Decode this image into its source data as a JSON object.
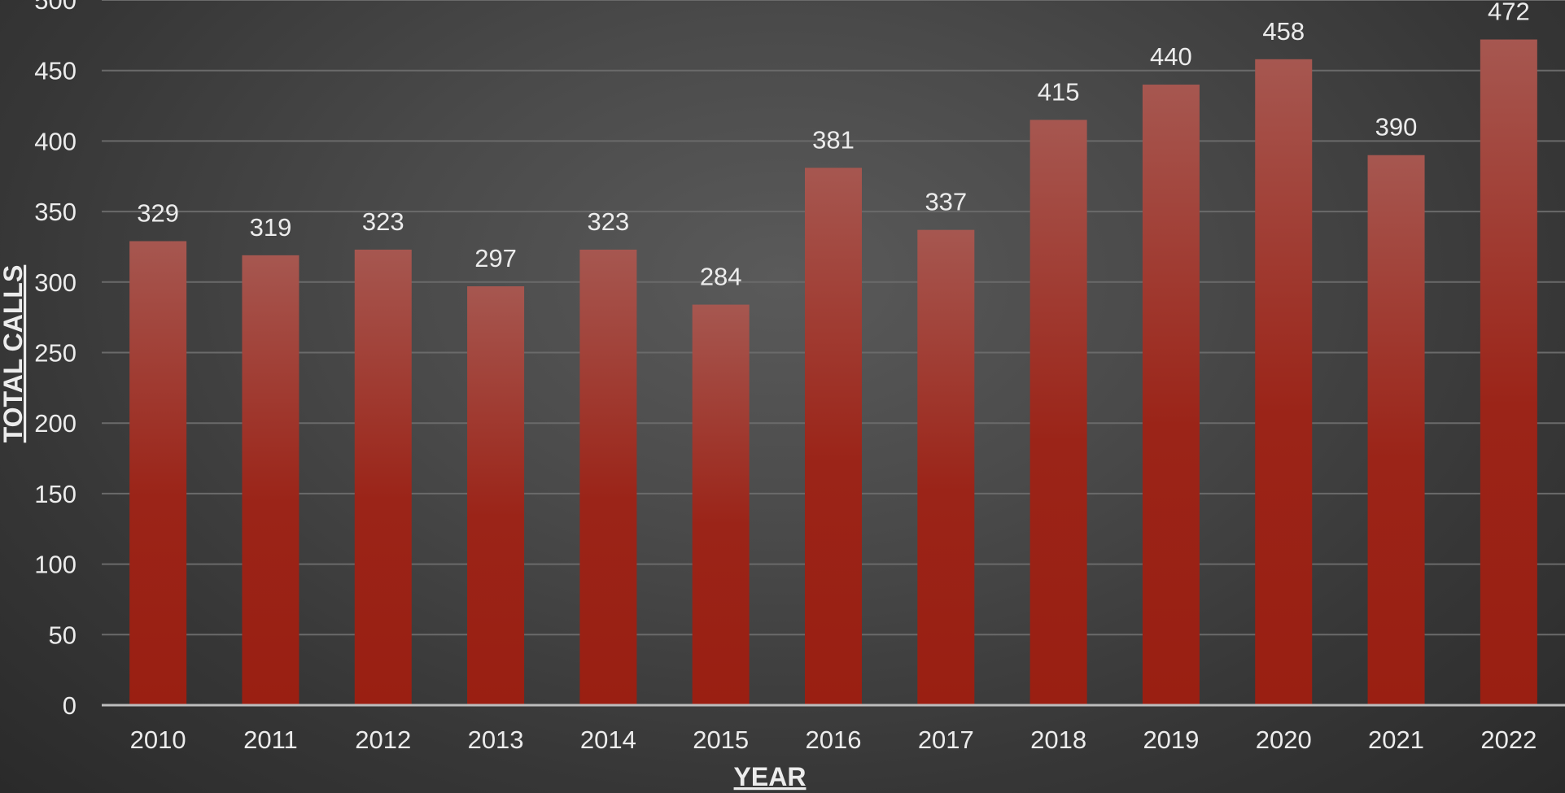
{
  "chart_data": {
    "type": "bar",
    "title": "",
    "xlabel": "YEAR",
    "ylabel": "TOTAL CALLS",
    "categories": [
      "2010",
      "2011",
      "2012",
      "2013",
      "2014",
      "2015",
      "2016",
      "2017",
      "2018",
      "2019",
      "2020",
      "2021",
      "2022"
    ],
    "series": [
      {
        "values": [
          329,
          319,
          323,
          297,
          323,
          284,
          381,
          337,
          415,
          440,
          458,
          390,
          472
        ]
      }
    ],
    "ylim": [
      0,
      500
    ],
    "yticks": [
      "0",
      "50",
      "100",
      "150",
      "200",
      "250",
      "300",
      "350",
      "400",
      "450",
      "500"
    ],
    "grid": true,
    "legend": "none",
    "data_labels": true,
    "colors": {
      "bar_top": "#a65750",
      "bar_bottom": "#9a1f12",
      "gridline": "#6a6a6a",
      "axis_line": "#bdbdbd",
      "text": "#ececec"
    }
  }
}
